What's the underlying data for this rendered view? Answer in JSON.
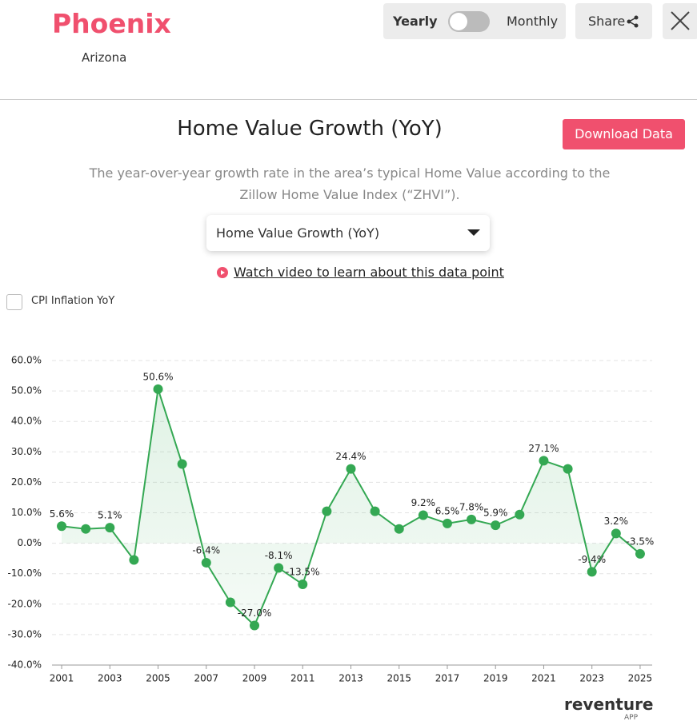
{
  "header": {
    "city": "Phoenix",
    "state": "Arizona",
    "toggle_left": "Yearly",
    "toggle_right": "Monthly",
    "share": "Share"
  },
  "title": "Home Value Growth (YoY)",
  "download": "Download Data",
  "description": "The year-over-year growth rate in the area’s typical Home Value according to the Zillow Home Value Index (“ZHVI”).",
  "dropdown": "Home Value Growth (YoY)",
  "video_link": "Watch video to learn about this data point",
  "checkbox": "CPI Inflation YoY",
  "logo": {
    "name": "reventure",
    "sub": "APP"
  },
  "chart_data": {
    "type": "line",
    "x": [
      2001,
      2002,
      2003,
      2004,
      2005,
      2006,
      2007,
      2008,
      2009,
      2010,
      2011,
      2012,
      2013,
      2014,
      2015,
      2016,
      2017,
      2018,
      2019,
      2020,
      2021,
      2022,
      2023,
      2024,
      2025
    ],
    "values": [
      5.6,
      4.7,
      5.1,
      -5.5,
      50.6,
      26.0,
      -6.4,
      -19.4,
      -27.0,
      -8.1,
      -13.5,
      10.5,
      24.4,
      10.5,
      4.7,
      9.2,
      6.5,
      7.8,
      5.9,
      9.4,
      27.1,
      24.4,
      -9.4,
      3.2,
      -3.5
    ],
    "value_labels": [
      "5.6%",
      null,
      "5.1%",
      null,
      "50.6%",
      null,
      "-6.4%",
      null,
      "-27.0%",
      "-8.1%",
      "-13.5%",
      null,
      "24.4%",
      null,
      null,
      "9.2%",
      "6.5%",
      "7.8%",
      "5.9%",
      null,
      "27.1%",
      null,
      "-9.4%",
      "3.2%",
      "-3.5%"
    ],
    "color": "#34a853",
    "xlim": [
      2000.6,
      2025.5
    ],
    "xticks": [
      2001,
      2003,
      2005,
      2007,
      2009,
      2011,
      2013,
      2015,
      2017,
      2019,
      2021,
      2023,
      2025
    ],
    "ylim": [
      -40,
      60
    ],
    "yticks": [
      {
        "value": -40,
        "label": "-40.0%"
      },
      {
        "value": -30,
        "label": "-30.0%"
      },
      {
        "value": -20,
        "label": "-20.0%"
      },
      {
        "value": -10,
        "label": "-10.0%"
      },
      {
        "value": 0,
        "label": "0.0%"
      },
      {
        "value": 10,
        "label": "10.0%"
      },
      {
        "value": 20,
        "label": "20.0%"
      },
      {
        "value": 30,
        "label": "30.0%"
      },
      {
        "value": 40,
        "label": "40.0%"
      },
      {
        "value": 50,
        "label": "50.0%"
      },
      {
        "value": 60,
        "label": "60.0%"
      }
    ],
    "grid": true
  }
}
